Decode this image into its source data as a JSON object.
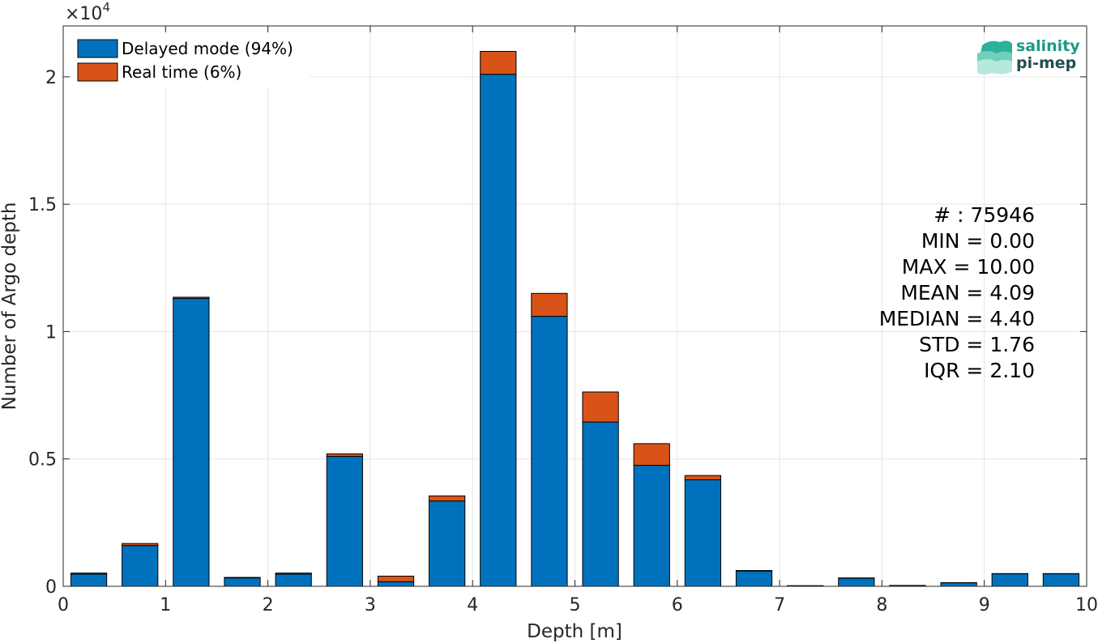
{
  "chart_data": {
    "type": "bar",
    "stacked": true,
    "xlabel": "Depth [m]",
    "ylabel": "Number of Argo depth",
    "xlim": [
      0,
      10
    ],
    "ylim": [
      0,
      22000
    ],
    "y_exponent_label": "×10",
    "y_exponent_power": "4",
    "x_ticks": [
      0,
      1,
      2,
      3,
      4,
      5,
      6,
      7,
      8,
      9,
      10
    ],
    "y_ticks": [
      0,
      5000,
      10000,
      15000,
      20000
    ],
    "y_tick_labels": [
      "0",
      "0.5",
      "1",
      "1.5",
      "2"
    ],
    "grid": true,
    "legend_position": "top-left",
    "bar_centers": [
      0.25,
      0.75,
      1.25,
      1.75,
      2.25,
      2.75,
      3.25,
      3.75,
      4.25,
      4.75,
      5.25,
      5.75,
      6.25,
      6.75,
      7.25,
      7.75,
      8.25,
      8.75,
      9.25,
      9.75
    ],
    "bar_width": 0.35,
    "series": [
      {
        "name": "Delayed mode (94%)",
        "color": "#0072BD",
        "values": [
          480,
          1600,
          11300,
          330,
          480,
          5100,
          180,
          3350,
          20100,
          10600,
          6450,
          4750,
          4180,
          600,
          20,
          320,
          30,
          140,
          490,
          490
        ]
      },
      {
        "name": "Real time (6%)",
        "color": "#D95319",
        "values": [
          40,
          80,
          50,
          20,
          40,
          100,
          220,
          200,
          900,
          900,
          1180,
          850,
          170,
          20,
          5,
          10,
          5,
          5,
          10,
          10
        ]
      }
    ],
    "annotations": [
      "# : 75946",
      "MIN = 0.00",
      "MAX =  10.00",
      "MEAN = 4.09",
      "MEDIAN = 4.40",
      "STD = 1.76",
      "IQR = 2.10"
    ]
  },
  "logo": {
    "line1": "salinity",
    "line2": "pi-mep",
    "color": "#1a9a86",
    "line2_color": "#1f4d4f"
  }
}
